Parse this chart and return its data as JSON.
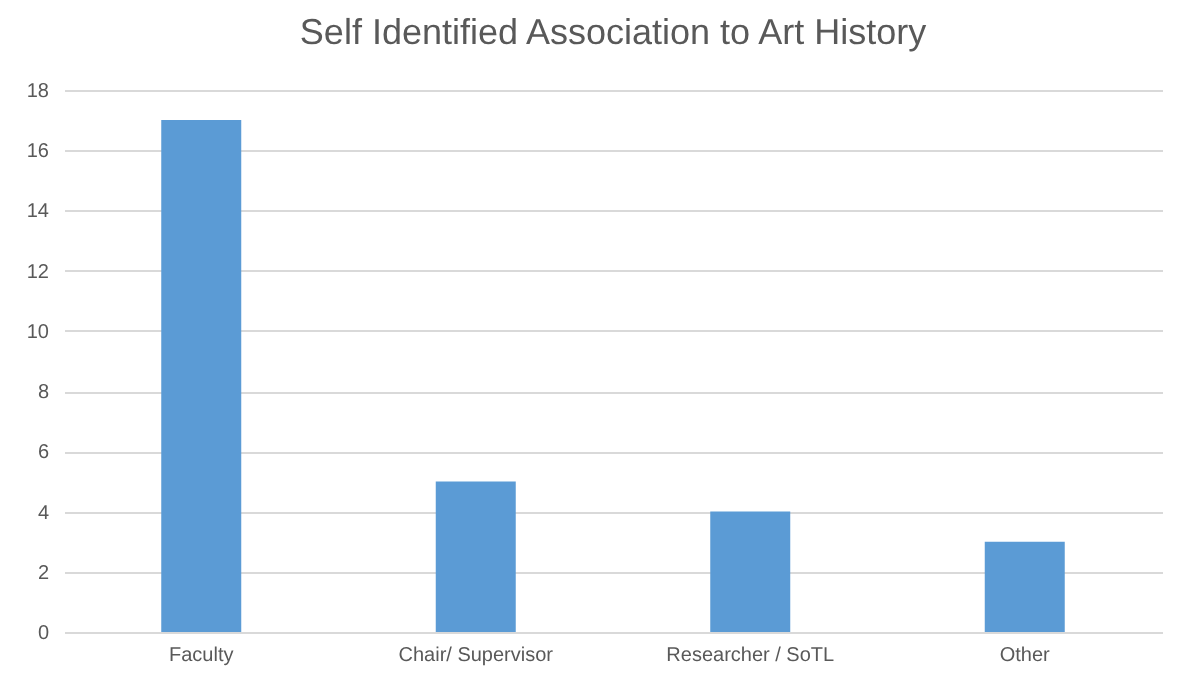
{
  "chart_data": {
    "type": "bar",
    "title": "Self Identified Association to Art History",
    "categories": [
      "Faculty",
      "Chair/ Supervisor",
      "Researcher / SoTL",
      "Other"
    ],
    "values": [
      17,
      5,
      4,
      3
    ],
    "color": "#5b9bd5",
    "ylim": [
      0,
      18
    ],
    "yticks": [
      0,
      2,
      4,
      6,
      8,
      10,
      12,
      14,
      16,
      18
    ],
    "grid": "y"
  }
}
